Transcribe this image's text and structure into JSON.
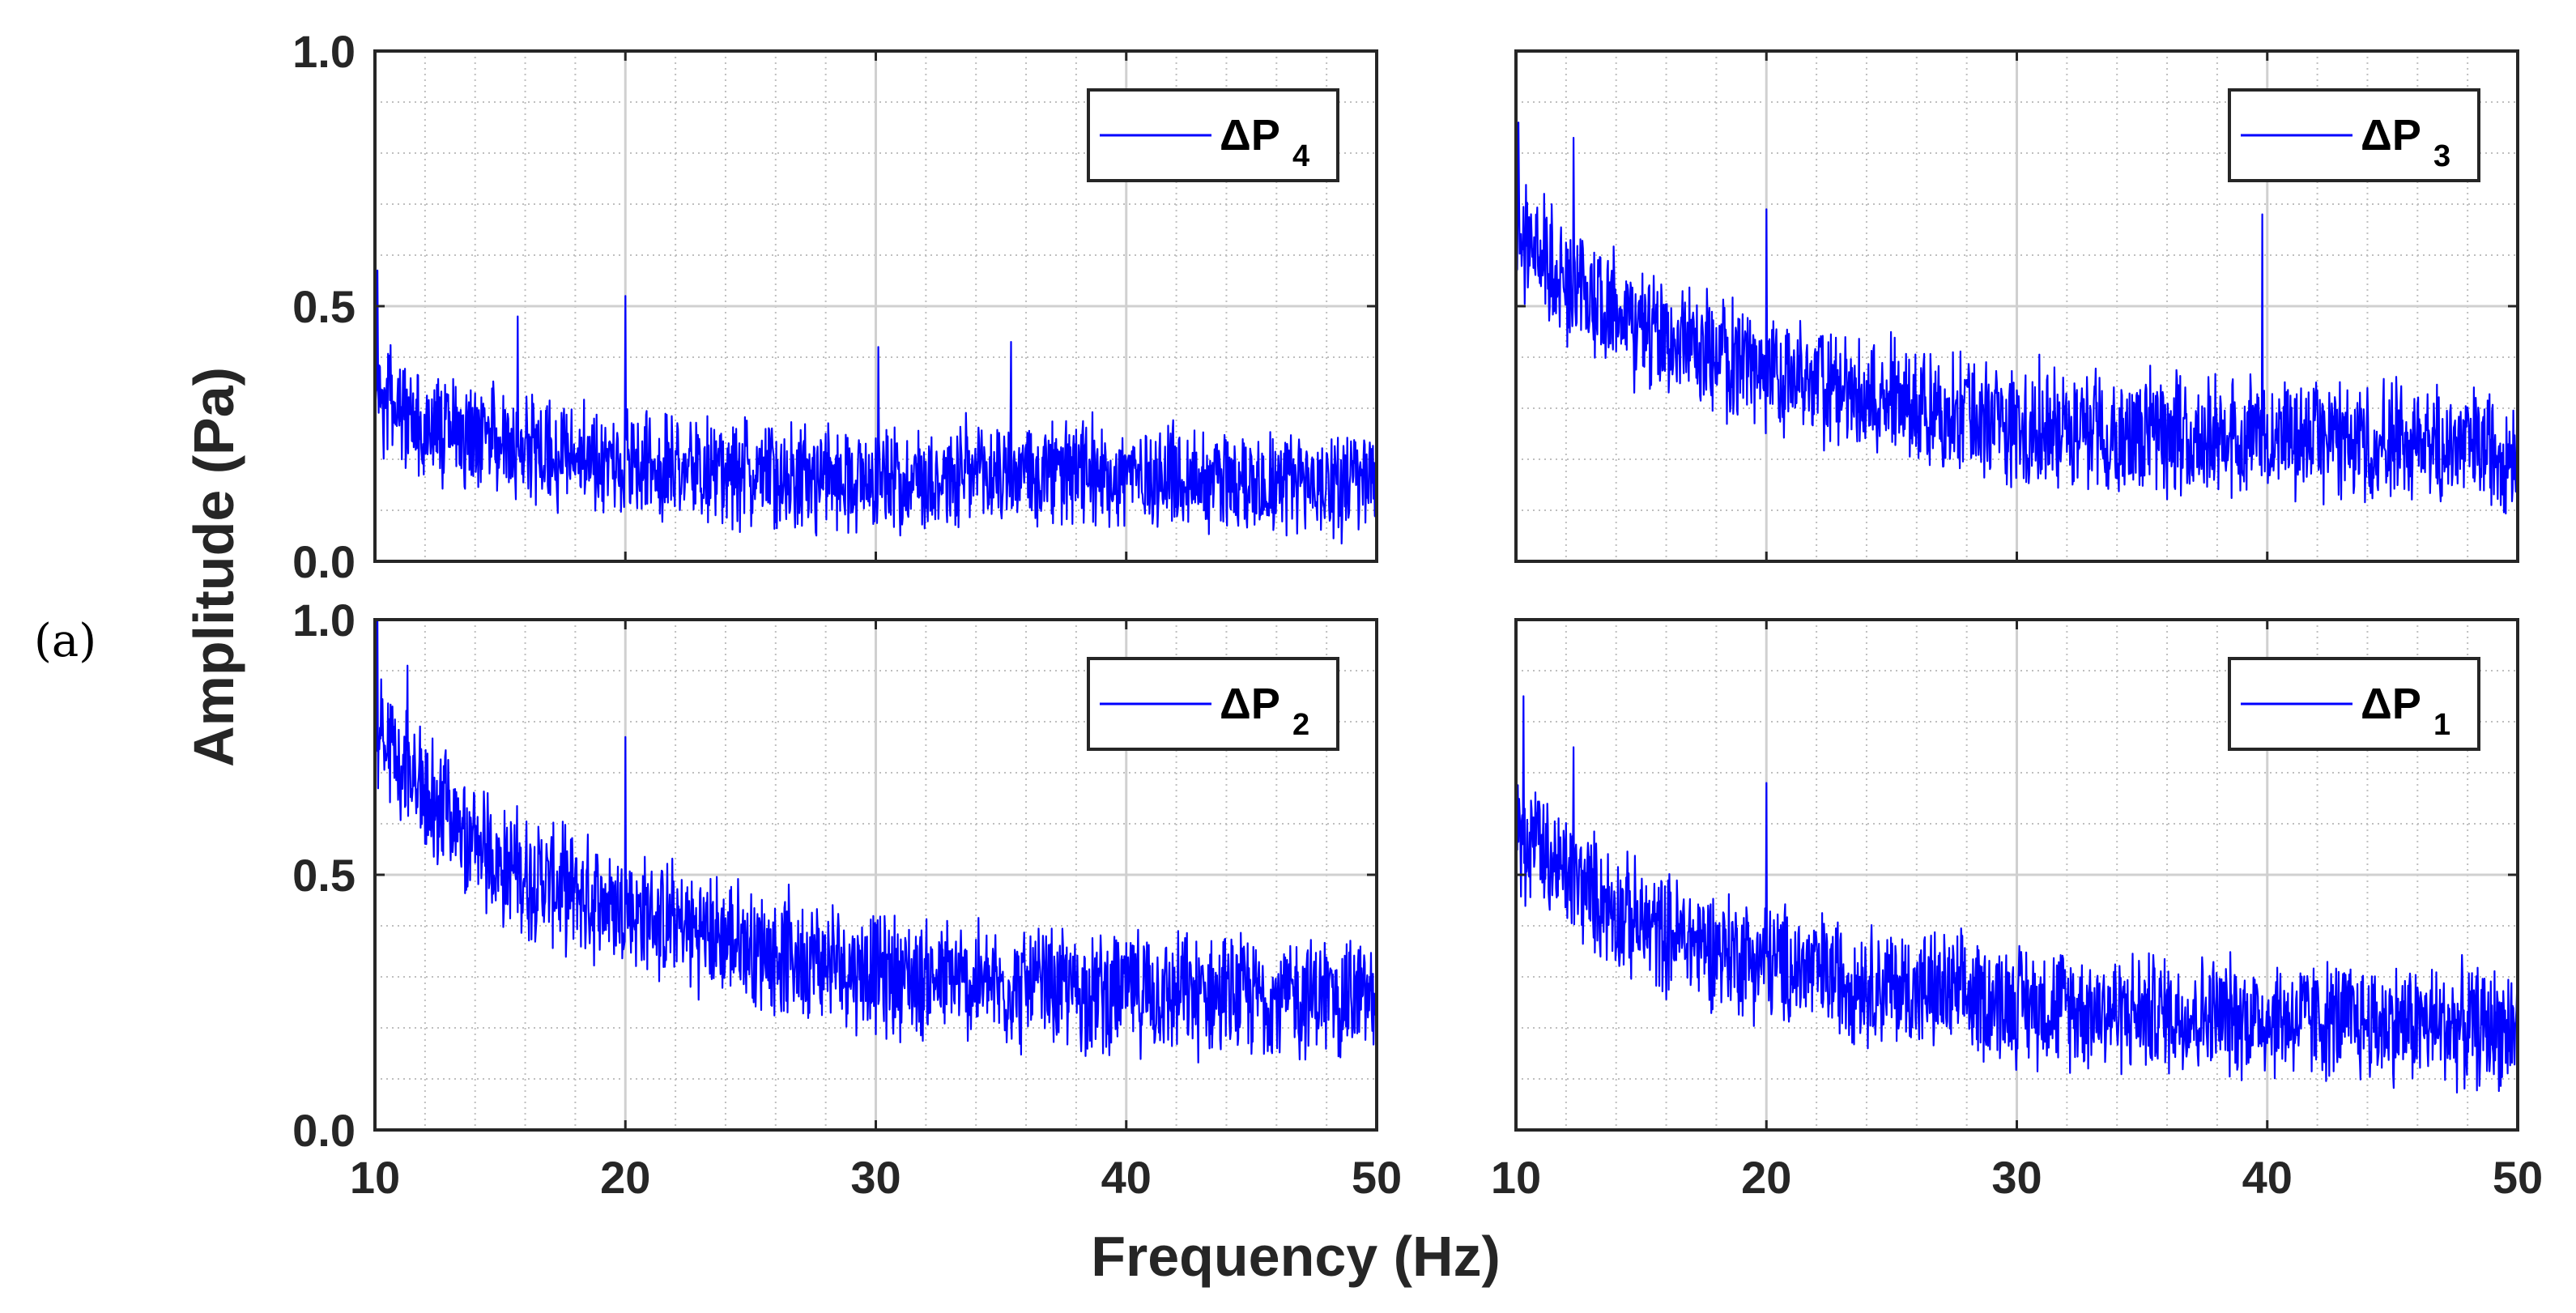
{
  "panel_label": "(a)",
  "colors": {
    "series": "#0000ff",
    "axis": "#262626",
    "grid": "#bfbfbf"
  },
  "chart_data": [
    {
      "type": "line",
      "position": "top-left",
      "legend": {
        "symbol": "ΔP",
        "subscript": "4",
        "placement": "top-right"
      },
      "xlim": [
        10,
        50
      ],
      "ylim": [
        0,
        1
      ],
      "xticks": [
        "10",
        "20",
        "30",
        "40",
        "50"
      ],
      "yticks": [
        "0.0",
        "0.5",
        "1.0"
      ],
      "show_xticks": false,
      "show_yticks": true,
      "grid": true,
      "trend": {
        "x": [
          10,
          12,
          15,
          20,
          25,
          30,
          35,
          40,
          45,
          50
        ],
        "y": [
          0.32,
          0.27,
          0.23,
          0.19,
          0.17,
          0.16,
          0.17,
          0.17,
          0.16,
          0.15
        ]
      },
      "noise": 0.09,
      "seed": 4,
      "peaks": [
        {
          "x": 10.1,
          "y": 0.57
        },
        {
          "x": 20,
          "y": 0.52
        },
        {
          "x": 15.7,
          "y": 0.48
        },
        {
          "x": 35.4,
          "y": 0.43
        },
        {
          "x": 30.1,
          "y": 0.42
        }
      ]
    },
    {
      "type": "line",
      "position": "top-right",
      "legend": {
        "symbol": "ΔP",
        "subscript": "3",
        "placement": "top-right"
      },
      "xlim": [
        10,
        50
      ],
      "ylim": [
        0,
        1
      ],
      "xticks": [
        "10",
        "20",
        "30",
        "40",
        "50"
      ],
      "yticks": [
        "0.0",
        "0.5",
        "1.0"
      ],
      "show_xticks": false,
      "show_yticks": false,
      "grid": true,
      "trend": {
        "x": [
          10,
          12,
          15,
          20,
          25,
          30,
          35,
          40,
          45,
          50
        ],
        "y": [
          0.65,
          0.55,
          0.45,
          0.37,
          0.31,
          0.27,
          0.25,
          0.24,
          0.23,
          0.22
        ]
      },
      "noise": 0.1,
      "seed": 3,
      "peaks": [
        {
          "x": 10.1,
          "y": 0.86
        },
        {
          "x": 12.3,
          "y": 0.83
        },
        {
          "x": 39.8,
          "y": 0.68
        },
        {
          "x": 20,
          "y": 0.69
        }
      ]
    },
    {
      "type": "line",
      "position": "bottom-left",
      "legend": {
        "symbol": "ΔP",
        "subscript": "2",
        "placement": "top-right"
      },
      "xlim": [
        10,
        50
      ],
      "ylim": [
        0,
        1
      ],
      "xticks": [
        "10",
        "20",
        "30",
        "40",
        "50"
      ],
      "yticks": [
        "0.0",
        "0.5",
        "1.0"
      ],
      "show_xticks": true,
      "show_yticks": true,
      "grid": true,
      "trend": {
        "x": [
          10,
          12,
          15,
          20,
          25,
          30,
          35,
          40,
          45,
          50
        ],
        "y": [
          0.78,
          0.65,
          0.52,
          0.43,
          0.36,
          0.31,
          0.28,
          0.27,
          0.26,
          0.26
        ]
      },
      "noise": 0.1,
      "seed": 2,
      "peaks": [
        {
          "x": 10.1,
          "y": 1.0
        },
        {
          "x": 11.3,
          "y": 0.91
        },
        {
          "x": 20,
          "y": 0.77
        }
      ]
    },
    {
      "type": "line",
      "position": "bottom-right",
      "legend": {
        "symbol": "ΔP",
        "subscript": "1",
        "placement": "top-right"
      },
      "xlim": [
        10,
        50
      ],
      "ylim": [
        0,
        1
      ],
      "xticks": [
        "10",
        "20",
        "30",
        "40",
        "50"
      ],
      "yticks": [
        "0.0",
        "0.5",
        "1.0"
      ],
      "show_xticks": true,
      "show_yticks": false,
      "grid": true,
      "trend": {
        "x": [
          10,
          12,
          15,
          20,
          25,
          30,
          35,
          40,
          45,
          50
        ],
        "y": [
          0.58,
          0.5,
          0.4,
          0.33,
          0.28,
          0.25,
          0.23,
          0.22,
          0.21,
          0.2
        ]
      },
      "noise": 0.1,
      "seed": 1,
      "peaks": [
        {
          "x": 10.3,
          "y": 0.85
        },
        {
          "x": 12.3,
          "y": 0.75
        },
        {
          "x": 20,
          "y": 0.68
        }
      ]
    }
  ],
  "axes": {
    "xlabel": "Frequency (Hz)",
    "ylabel": "Amplitude (Pa)"
  }
}
